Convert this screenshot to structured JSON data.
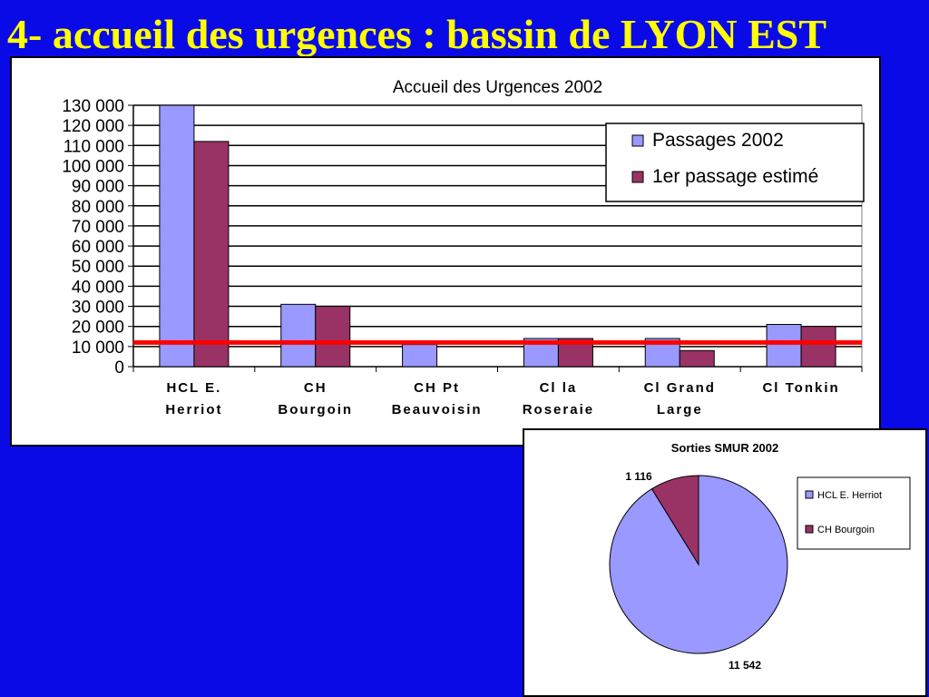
{
  "slide": {
    "title": "4- accueil des urgences : bassin de LYON EST"
  },
  "colors": {
    "series1": "#9999ff",
    "series2": "#993366",
    "reference_line": "#ff0000",
    "background": "#0a0ae6",
    "title": "#ffff00"
  },
  "chart_data": [
    {
      "type": "bar",
      "title": "Accueil des Urgences 2002",
      "categories": [
        [
          "HCL E.",
          "Herriot"
        ],
        [
          "CH",
          "Bourgoin"
        ],
        [
          "CH Pt",
          "Beauvoisin"
        ],
        [
          "Cl la",
          "Roseraie"
        ],
        [
          "Cl Grand",
          "Large"
        ],
        [
          "Cl Tonkin",
          ""
        ]
      ],
      "series": [
        {
          "name": "Passages 2002",
          "values": [
            130000,
            31000,
            11000,
            14000,
            14000,
            21000
          ]
        },
        {
          "name": "1er passage estimé",
          "values": [
            112000,
            30000,
            0,
            14000,
            8000,
            20000
          ]
        }
      ],
      "ylim": [
        0,
        130000
      ],
      "yticks": [
        "0",
        "10 000",
        "20 000",
        "30 000",
        "40 000",
        "50 000",
        "60 000",
        "70 000",
        "80 000",
        "90 000",
        "100 000",
        "110 000",
        "120 000",
        "130 000"
      ],
      "reference_line_value": 12000,
      "grid": true,
      "legend_position": "top-right"
    },
    {
      "type": "pie",
      "title": "Sorties SMUR 2002",
      "labels": [
        "HCL E. Herriot",
        "CH Bourgoin"
      ],
      "values": [
        11542,
        1116
      ],
      "value_labels": [
        "11 542",
        "1 116"
      ],
      "legend_position": "right"
    }
  ]
}
